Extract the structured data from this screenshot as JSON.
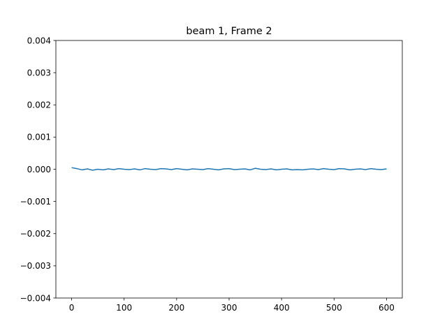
{
  "chart_data": {
    "type": "line",
    "title": "beam 1, Frame 2",
    "xlabel": "",
    "ylabel": "",
    "xlim": [
      -30,
      630
    ],
    "ylim": [
      -0.004,
      0.004
    ],
    "xticks": [
      0,
      100,
      200,
      300,
      400,
      500,
      600
    ],
    "yticks": [
      -0.004,
      -0.003,
      -0.002,
      -0.001,
      0.0,
      0.001,
      0.002,
      0.003,
      0.004
    ],
    "xtick_labels": [
      "0",
      "100",
      "200",
      "300",
      "400",
      "500",
      "600"
    ],
    "ytick_labels": [
      "−0.004",
      "−0.003",
      "−0.002",
      "−0.001",
      "0.000",
      "0.001",
      "0.002",
      "0.003",
      "0.004"
    ],
    "grid": false,
    "series": [
      {
        "color": "#1f77b4",
        "x": [
          0,
          10,
          20,
          30,
          40,
          50,
          60,
          70,
          80,
          90,
          100,
          110,
          120,
          130,
          140,
          150,
          160,
          170,
          180,
          190,
          200,
          210,
          220,
          230,
          240,
          250,
          260,
          270,
          280,
          290,
          300,
          310,
          320,
          330,
          340,
          350,
          360,
          370,
          380,
          390,
          400,
          410,
          420,
          430,
          440,
          450,
          460,
          470,
          480,
          490,
          500,
          510,
          520,
          530,
          540,
          550,
          560,
          570,
          580,
          590,
          600
        ],
        "values": [
          5e-05,
          2e-05,
          -2e-05,
          1e-05,
          -3e-05,
          0.0,
          -2e-05,
          1e-05,
          -1e-05,
          2e-05,
          0.0,
          -1e-05,
          1e-05,
          -2e-05,
          2e-05,
          0.0,
          -1e-05,
          2e-05,
          1e-05,
          -1e-05,
          2e-05,
          0.0,
          -2e-05,
          1e-05,
          0.0,
          -1e-05,
          2e-05,
          0.0,
          -2e-05,
          1e-05,
          2e-05,
          -1e-05,
          0.0,
          1e-05,
          -2e-05,
          3e-05,
          0.0,
          -1e-05,
          1e-05,
          -2e-05,
          0.0,
          1e-05,
          -2e-05,
          -1e-05,
          -2e-05,
          0.0,
          1e-05,
          -1e-05,
          2e-05,
          0.0,
          -1e-05,
          2e-05,
          1e-05,
          -2e-05,
          0.0,
          1e-05,
          -1e-05,
          2e-05,
          0.0,
          -1e-05,
          1e-05
        ]
      }
    ]
  }
}
